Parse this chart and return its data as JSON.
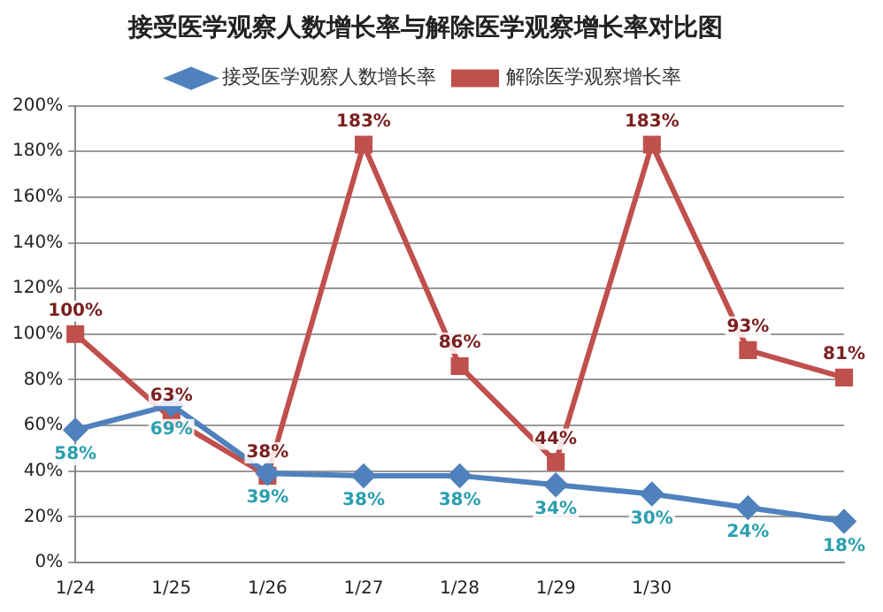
{
  "chart_data": {
    "type": "line",
    "title": "接受医学观察人数增长率与解除医学观察增长率对比图",
    "categories": [
      "1/24",
      "1/25",
      "1/26",
      "1/27",
      "1/28",
      "1/29",
      "1/30",
      null,
      null
    ],
    "series": [
      {
        "name": "接受医学观察人数增长率",
        "color": "#4f81bd",
        "marker": "diamond",
        "values": [
          58,
          69,
          39,
          38,
          38,
          34,
          30,
          24,
          18
        ],
        "value_labels": [
          "58%",
          "69%",
          "39%",
          "38%",
          "38%",
          "34%",
          "30%",
          "24%",
          "18%"
        ]
      },
      {
        "name": "解除医学观察增长率",
        "color": "#c0504d",
        "marker": "square",
        "values": [
          100,
          63,
          38,
          183,
          86,
          44,
          183,
          93,
          81
        ],
        "value_labels": [
          "100%",
          "63%",
          "38%",
          "183%",
          "86%",
          "44%",
          "183%",
          "93%",
          "81%"
        ]
      }
    ],
    "ylim": [
      0,
      200
    ],
    "yticks": [
      {
        "value": 0,
        "label": "0%"
      },
      {
        "value": 20,
        "label": "20%"
      },
      {
        "value": 40,
        "label": "40%"
      },
      {
        "value": 60,
        "label": "60%"
      },
      {
        "value": 80,
        "label": "80%"
      },
      {
        "value": 100,
        "label": "100%"
      },
      {
        "value": 120,
        "label": "120%"
      },
      {
        "value": 140,
        "label": "140%"
      },
      {
        "value": 160,
        "label": "160%"
      },
      {
        "value": 180,
        "label": "180%"
      },
      {
        "value": 200,
        "label": "200%"
      }
    ],
    "grid": "y",
    "legend": "top"
  }
}
